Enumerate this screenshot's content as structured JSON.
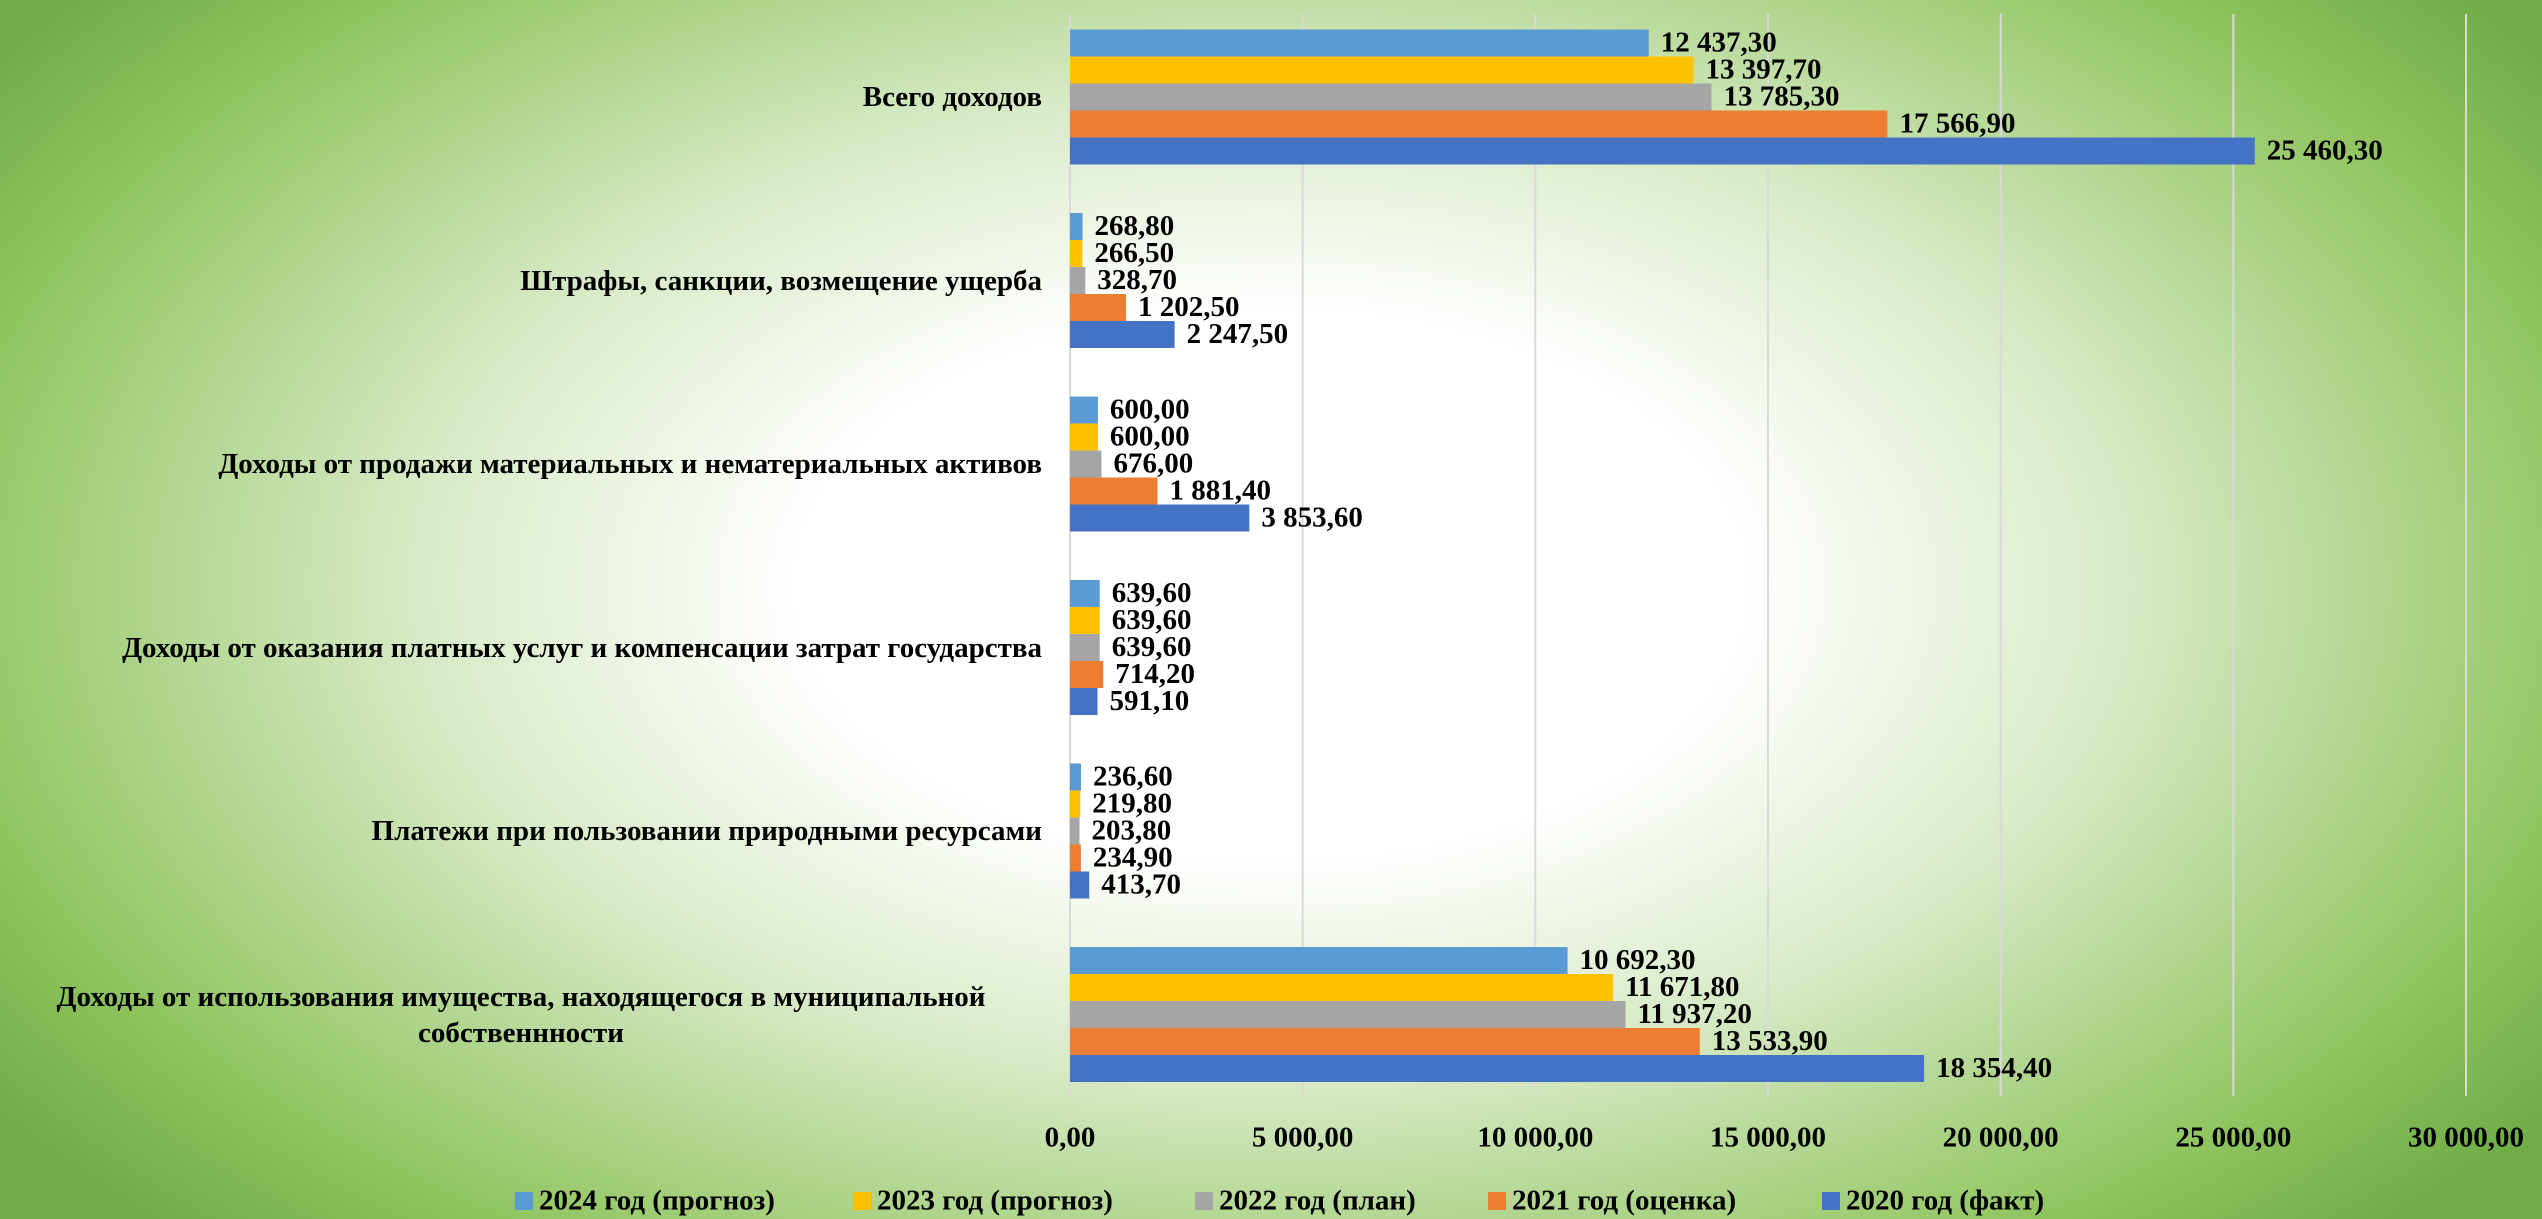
{
  "chart_data": {
    "type": "barh",
    "categories": [
      "Всего доходов",
      "Штрафы, санкции, возмещение ущерба",
      "Доходы от продажи материальных и нематериальных активов",
      "Доходы от оказания платных услуг и компенсации затрат государства",
      "Платежи при пользовании природными ресурсами",
      "Доходы от использования имущества, находящегося в муниципальной собственнности"
    ],
    "series": [
      {
        "name": "2024 год (прогноз)",
        "color": "#5b9bd5",
        "values": [
          12437.3,
          268.8,
          600,
          639.6,
          236.6,
          10692.3
        ],
        "value_labels": [
          "12 437,30",
          "268,80",
          "600,00",
          "639,60",
          "236,60",
          "10 692,30"
        ]
      },
      {
        "name": "2023 год (прогноз)",
        "color": "#ffc000",
        "values": [
          13397.7,
          266.5,
          600,
          639.6,
          219.8,
          11671.8
        ],
        "value_labels": [
          "13 397,70",
          "266,50",
          "600,00",
          "639,60",
          "219,80",
          "11 671,80"
        ]
      },
      {
        "name": "2022 год (план)",
        "color": "#a5a5a5",
        "values": [
          13785.3,
          328.7,
          676,
          639.6,
          203.8,
          11937.2
        ],
        "value_labels": [
          "13 785,30",
          "328,70",
          "676,00",
          "639,60",
          "203,80",
          "11 937,20"
        ]
      },
      {
        "name": "2021 год  (оценка)",
        "color": "#ed7d31",
        "values": [
          17566.9,
          1202.5,
          1881.4,
          714.2,
          234.9,
          13533.9
        ],
        "value_labels": [
          "17 566,90",
          "1 202,50",
          "1 881,40",
          "714,20",
          "234,90",
          "13 533,90"
        ]
      },
      {
        "name": "2020 год (факт)",
        "color": "#4472c4",
        "values": [
          25460.3,
          2247.5,
          3853.6,
          591.1,
          413.7,
          18354.4
        ],
        "value_labels": [
          "25 460,30",
          "2 247,50",
          "3 853,60",
          "591,10",
          "413,70",
          "18 354,40"
        ]
      }
    ],
    "xlim": [
      0,
      30000
    ],
    "xticks": [
      {
        "value": 0,
        "label": "0,00"
      },
      {
        "value": 5000,
        "label": "5 000,00"
      },
      {
        "value": 10000,
        "label": "10 000,00"
      },
      {
        "value": 15000,
        "label": "15 000,00"
      },
      {
        "value": 20000,
        "label": "20 000,00"
      },
      {
        "value": 25000,
        "label": "25 000,00"
      },
      {
        "value": 30000,
        "label": "30 000,00"
      }
    ],
    "grid": true
  }
}
